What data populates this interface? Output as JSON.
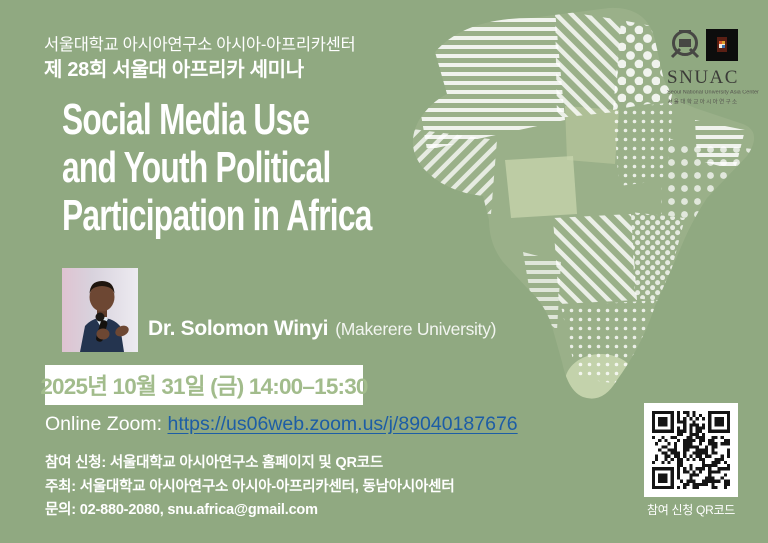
{
  "poster": {
    "colors": {
      "background": "#90a981",
      "map_tint": "#a3b78f",
      "date_text": "#a2bc8c",
      "link_blue": "#1d5da5",
      "text_white": "#ffffff"
    },
    "header": {
      "org_line": "서울대학교 아시아연구소 아시아-아프리카센터",
      "series_line": "제 28회 서울대 아프리카 세미나"
    },
    "logo": {
      "wordmark": "SNUAC",
      "tagline_en": "Seoul National University Asia Center",
      "tagline_kr": "서울대학교아시아연구소"
    },
    "title_lines": [
      "Social Media Use",
      "and Youth Political",
      "Participation in Africa"
    ],
    "speaker": {
      "name": "Dr. Solomon Winyi",
      "affiliation": "(Makerere University)"
    },
    "schedule": {
      "datetime": "2025년 10월 31일 (금) 14:00–15:30"
    },
    "zoom": {
      "label": "Online Zoom:",
      "url": "https://us06web.zoom.us/j/89040187676"
    },
    "info_lines": [
      "참여 신청: 서울대학교 아시아연구소 홈페이지 및 QR코드",
      "주최: 서울대학교 아시아연구소 아시아-아프리카센터, 동남아시아센터",
      "문의: 02-880-2080, snu.africa@gmail.com"
    ],
    "qr": {
      "caption": "참여 신청 QR코드"
    }
  }
}
